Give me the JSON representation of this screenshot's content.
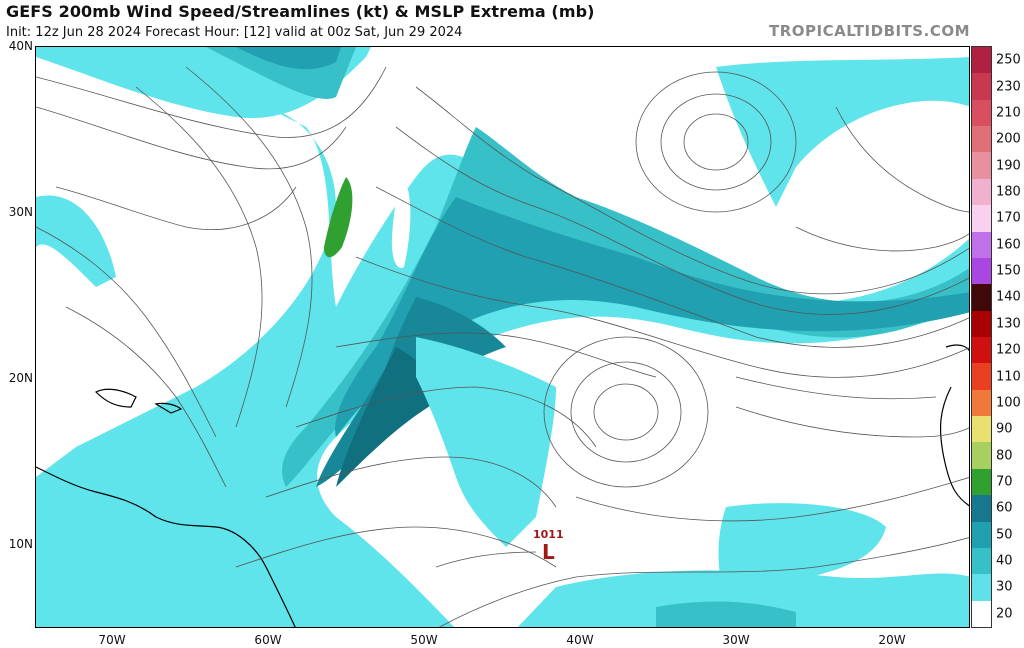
{
  "header": {
    "title": "GEFS 200mb Wind Speed/Streamlines (kt) & MSLP Extrema (mb)",
    "subtitle": "Init: 12z Jun 28 2024   Forecast Hour: [12]   valid at 00z Sat, Jun 29 2024",
    "brand": "TROPICALTIDBITS.COM"
  },
  "axes": {
    "lat_labels": [
      "40N",
      "30N",
      "20N",
      "10N"
    ],
    "lon_labels": [
      "70W",
      "60W",
      "50W",
      "40W",
      "30W",
      "20W"
    ]
  },
  "pressure_low": {
    "value": "1011",
    "symbol": "L",
    "color": "#a01818"
  },
  "colorbar": {
    "labels": [
      "250",
      "230",
      "210",
      "200",
      "190",
      "180",
      "170",
      "160",
      "150",
      "140",
      "130",
      "120",
      "110",
      "100",
      "90",
      "80",
      "70",
      "60",
      "50",
      "40",
      "30",
      "20"
    ],
    "colors": [
      "#b02040",
      "#c83850",
      "#d85060",
      "#e07078",
      "#e890a0",
      "#f0b0d0",
      "#f8d0f0",
      "#c070e8",
      "#a848e0",
      "#400808",
      "#a80000",
      "#d01010",
      "#e84020",
      "#f07838",
      "#e8e070",
      "#a8d060",
      "#30a030",
      "#187890",
      "#20a0b0",
      "#38c0c8",
      "#60e0e8",
      "#ffffff"
    ]
  }
}
